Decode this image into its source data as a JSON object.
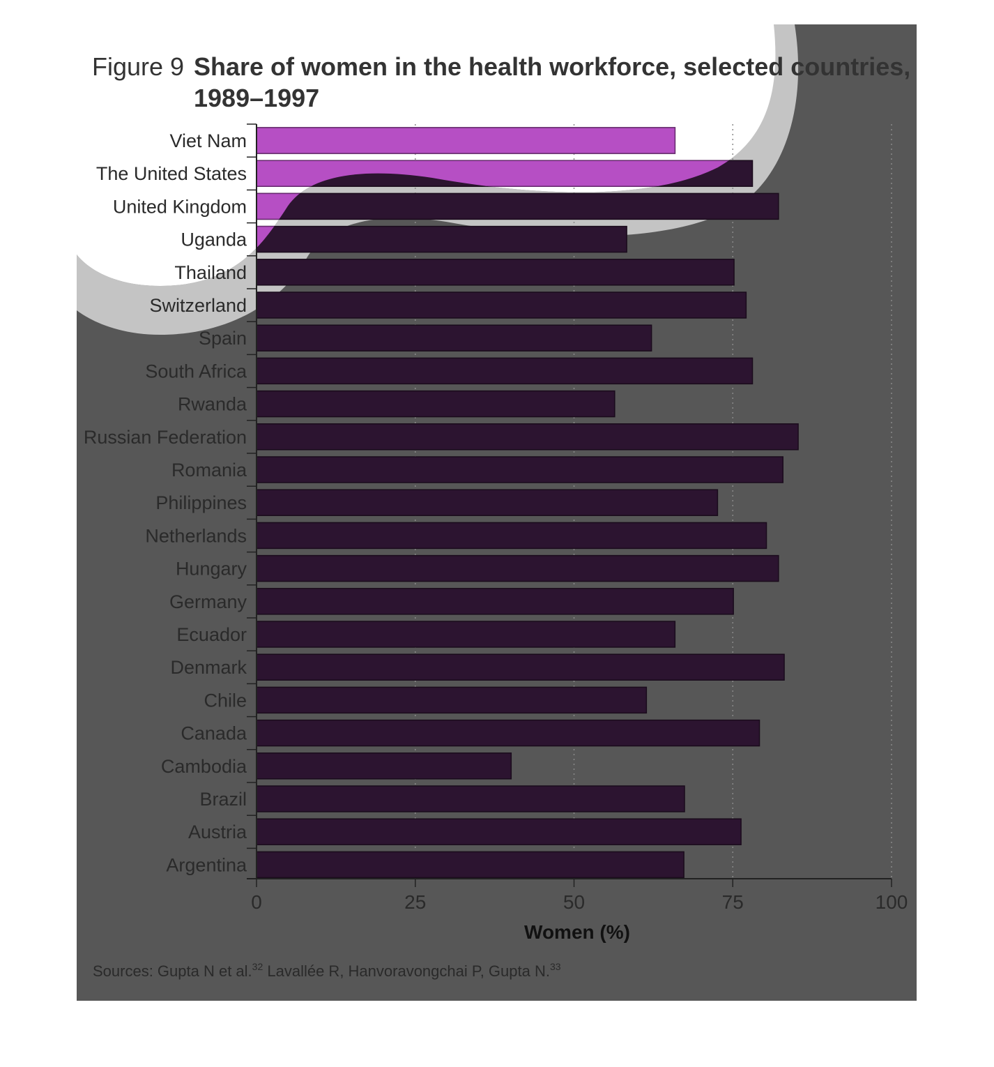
{
  "figure_number": "Figure 9",
  "chart_data": {
    "type": "bar",
    "orientation": "horizontal",
    "title": "Share of women in the health workforce, selected countries,",
    "title_line2": "1989–1997",
    "xlabel": "Women (%)",
    "ylabel": "",
    "xlim": [
      0,
      100
    ],
    "ticks": [
      0,
      25,
      50,
      75,
      100
    ],
    "tick_labels": [
      "0",
      "25",
      "50",
      "75",
      "100"
    ],
    "grid": "vertical dotted",
    "categories": [
      "Viet Nam",
      "The United States",
      "United Kingdom",
      "Uganda",
      "Thailand",
      "Switzerland",
      "Spain",
      "South Africa",
      "Rwanda",
      "Russian Federation",
      "Romania",
      "Philippines",
      "Netherlands",
      "Hungary",
      "Germany",
      "Ecuador",
      "Denmark",
      "Chile",
      "Canada",
      "Cambodia",
      "Brazil",
      "Austria",
      "Argentina"
    ],
    "values": [
      65.9,
      78.1,
      82.2,
      58.3,
      75.2,
      77.1,
      62.2,
      78.1,
      56.4,
      85.3,
      82.9,
      72.6,
      80.3,
      82.2,
      75.1,
      65.9,
      83.1,
      61.4,
      79.2,
      40.1,
      67.4,
      76.3,
      67.3
    ]
  },
  "source": {
    "text1": "Sources: Gupta N et al.",
    "ref1": "32",
    "text2": " Lavallée R, Hanvoravongchai P, Gupta N.",
    "ref2": "33"
  },
  "colors": {
    "panel": "#575757",
    "bar_dark": "#2c1430",
    "bar_light": "#b64fc4",
    "arc": "#c4c4c4"
  }
}
